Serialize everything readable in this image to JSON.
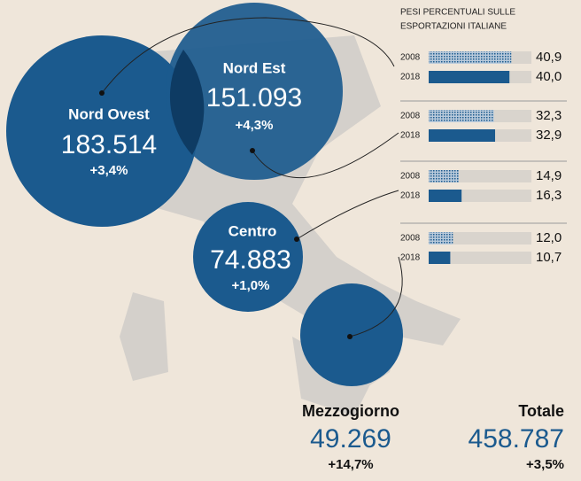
{
  "regions": [
    {
      "name": "Nord Ovest",
      "value": "183.514",
      "change": "+3,4%"
    },
    {
      "name": "Nord Est",
      "value": "151.093",
      "change": "+4,3%"
    },
    {
      "name": "Centro",
      "value": "74.883",
      "change": "+1,0%"
    },
    {
      "name": "Mezzogiorno",
      "value": "49.269",
      "change": "+14,7%"
    }
  ],
  "total": {
    "name": "Totale",
    "value": "458.787",
    "change": "+3,5%"
  },
  "chart_data": {
    "type": "bar",
    "title": [
      "PESI PERCENTUALI SULLE",
      "ESPORTAZIONI ITALIANE"
    ],
    "categories": [
      "2008",
      "2018"
    ],
    "groups": [
      {
        "values": [
          40.9,
          40.0
        ],
        "value_labels": [
          "40,9",
          "40,0"
        ]
      },
      {
        "values": [
          32.3,
          32.9
        ],
        "value_labels": [
          "32,3",
          "32,9"
        ]
      },
      {
        "values": [
          14.9,
          16.3
        ],
        "value_labels": [
          "14,9",
          "16,3"
        ]
      },
      {
        "values": [
          12.0,
          10.7
        ],
        "value_labels": [
          "12,0",
          "10,7"
        ]
      }
    ],
    "colors": [
      "#8fa9c4",
      "#1b5a8e"
    ]
  }
}
